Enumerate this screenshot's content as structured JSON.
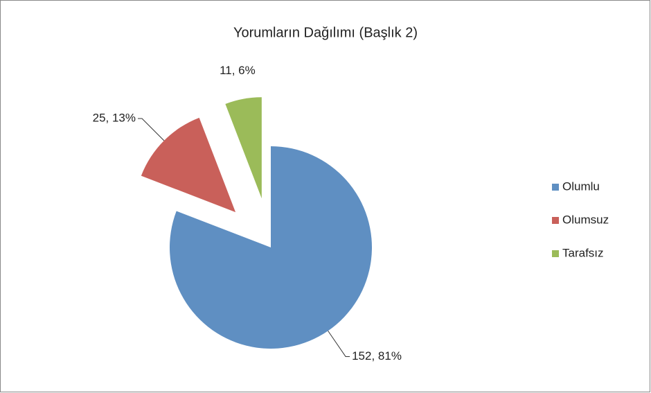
{
  "chart_data": {
    "type": "pie",
    "title": "Yorumların Dağılımı (Başlık 2)",
    "categories": [
      "Olumlu",
      "Olumsuz",
      "Tarafsız"
    ],
    "values": [
      152,
      25,
      11
    ],
    "value_labels": [
      "152, 81%",
      "25, 13%",
      "11, 6%"
    ],
    "colors": [
      "#5f8fc2",
      "#c9605a",
      "#9bbb59"
    ],
    "legend": "right"
  }
}
